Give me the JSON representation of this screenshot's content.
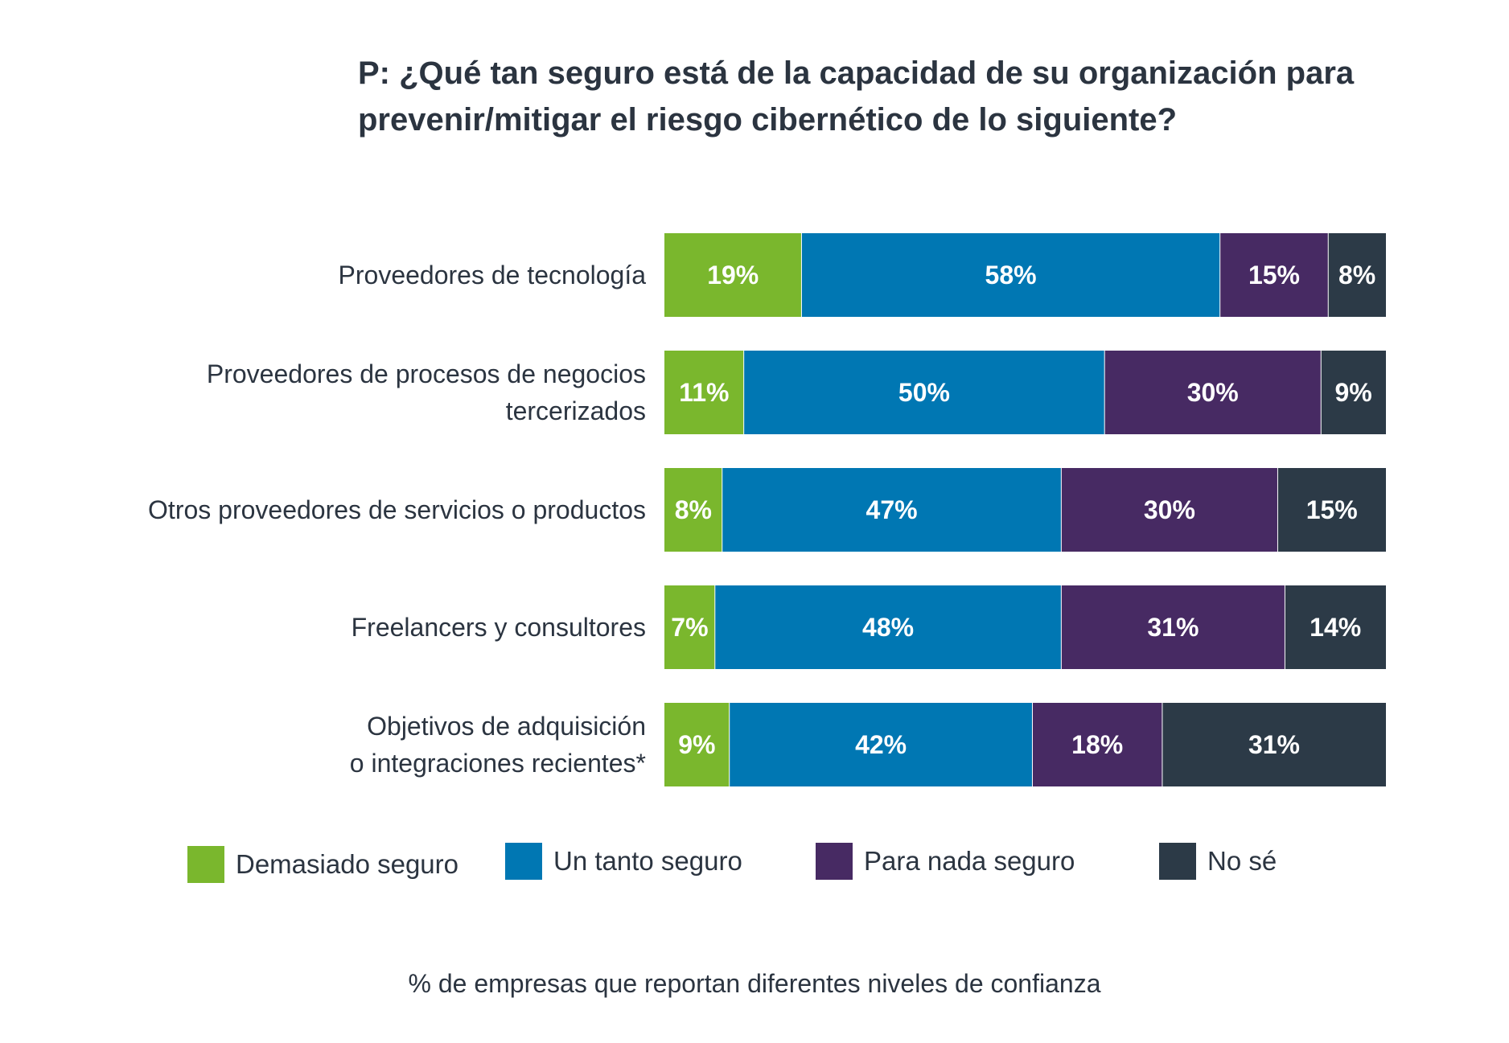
{
  "title": "P: ¿Qué tan seguro está de la capacidad de su organización para prevenir/mitigar el riesgo cibernético de lo siguiente?",
  "footnote": "% de empresas que reportan diferentes niveles de confianza",
  "chart_data": {
    "type": "bar",
    "orientation": "horizontal",
    "stacked": true,
    "categories": [
      [
        "Proveedores de tecnología"
      ],
      [
        "Proveedores de procesos de negocios",
        "tercerizados"
      ],
      [
        "Otros proveedores de servicios o productos"
      ],
      [
        "Freelancers y consultores"
      ],
      [
        "Objetivos de adquisición",
        "o integraciones recientes*"
      ]
    ],
    "series": [
      {
        "name": "Demasiado seguro",
        "color": "#7ab72d",
        "values": [
          19,
          11,
          8,
          7,
          9
        ]
      },
      {
        "name": "Un tanto seguro",
        "color": "#0077b3",
        "values": [
          58,
          50,
          47,
          48,
          42
        ]
      },
      {
        "name": "Para nada seguro",
        "color": "#472a63",
        "values": [
          15,
          30,
          30,
          31,
          18
        ]
      },
      {
        "name": "No sé",
        "color": "#2c3a47",
        "values": [
          8,
          9,
          15,
          14,
          31
        ]
      }
    ],
    "unit": "%",
    "legend_position": "bottom"
  }
}
